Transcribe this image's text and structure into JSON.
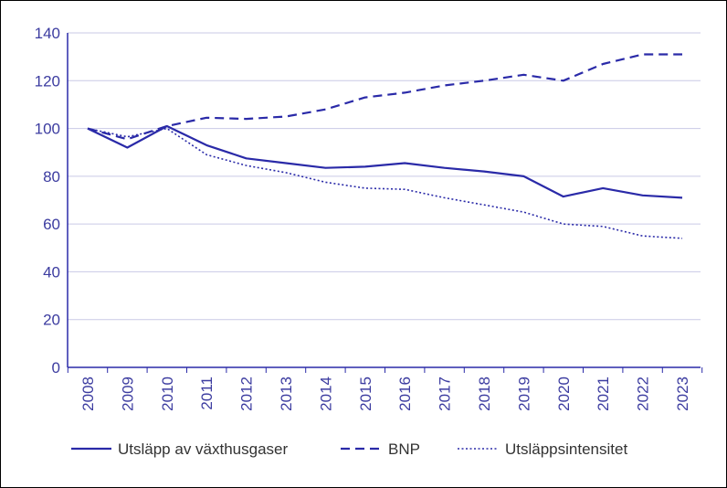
{
  "colors": {
    "series": "#2a2aa8",
    "grid": "#c9c9e6",
    "axis": "#2a2aa8",
    "tick_text": "#3c3ca0",
    "legend_text": "#333333",
    "border": "#000000"
  },
  "chart_data": {
    "type": "line",
    "title": "",
    "xlabel": "",
    "ylabel": "",
    "ylim": [
      0,
      140
    ],
    "yticks": [
      0,
      20,
      40,
      60,
      80,
      100,
      120,
      140
    ],
    "grid": true,
    "legend_position": "bottom",
    "x": [
      "2008",
      "2009",
      "2010",
      "2011",
      "2012",
      "2013",
      "2014",
      "2015",
      "2016",
      "2017",
      "2018",
      "2019",
      "2020",
      "2021",
      "2022",
      "2023"
    ],
    "series": [
      {
        "name": "Utsläpp av växthusgaser",
        "style": "solid",
        "values": [
          100,
          92,
          101,
          93,
          87.5,
          85.5,
          83.5,
          84,
          85.5,
          83.5,
          82,
          80,
          71.5,
          75,
          72,
          71
        ]
      },
      {
        "name": "BNP",
        "style": "dashed",
        "values": [
          100,
          95.5,
          101,
          104.5,
          104,
          105,
          108,
          113,
          115,
          118,
          120,
          122.5,
          120,
          127,
          131,
          131
        ]
      },
      {
        "name": "Utsläppsintensitet",
        "style": "dotted",
        "values": [
          100,
          96.5,
          100,
          89,
          84.5,
          81.5,
          77.5,
          75,
          74.5,
          71,
          68,
          65,
          60,
          59,
          55,
          54
        ]
      }
    ]
  }
}
